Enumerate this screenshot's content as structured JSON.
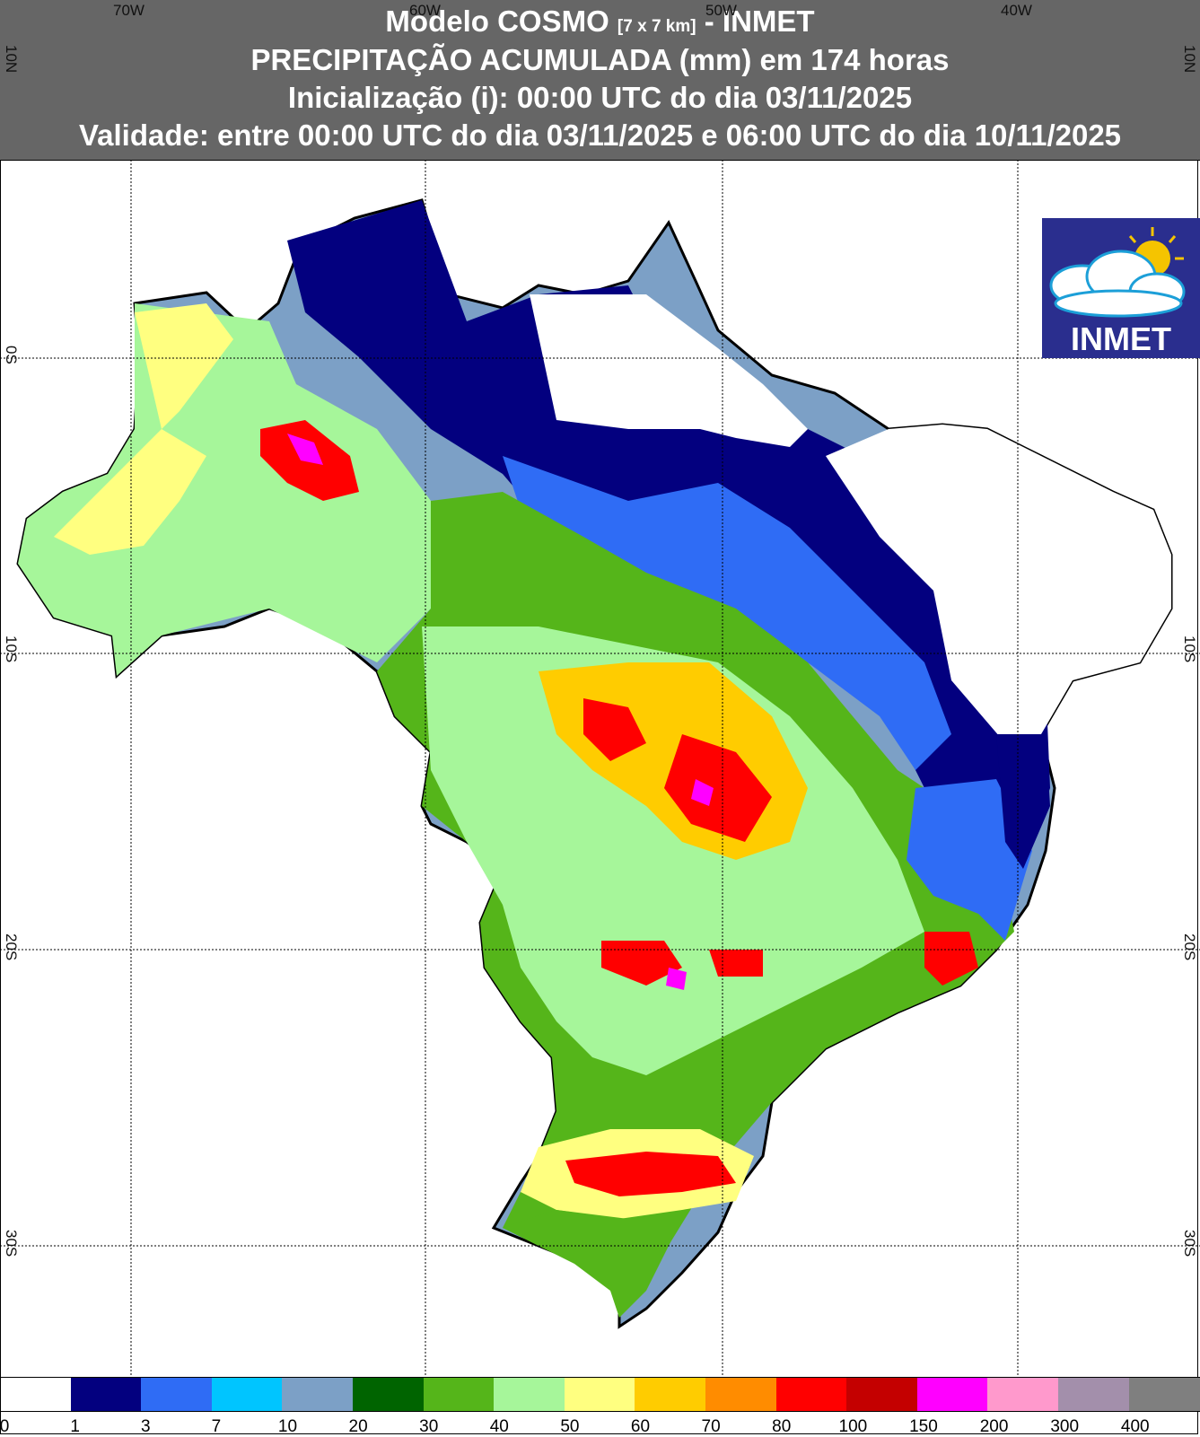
{
  "header": {
    "title_main": "Modelo COSMO ",
    "title_resolution": "[7 x 7 km]",
    "title_suffix": " - INMET",
    "subtitle": "PRECIPITAÇÃO ACUMULADA (mm) em 174 horas",
    "initialization": "Inicialização (i): 00:00 UTC do dia 03/11/2025",
    "validity": "Validade: entre 00:00 UTC do dia 03/11/2025 e 06:00 UTC do dia 10/11/2025"
  },
  "axes": {
    "lon_ticks": [
      "70W",
      "60W",
      "50W",
      "40W"
    ],
    "lat_ticks": [
      "10N",
      "0S",
      "10S",
      "20S",
      "30S"
    ]
  },
  "logo": {
    "text": "INMET",
    "colors": {
      "bg": "#2a2e8e",
      "sun": "#f5c400"
    }
  },
  "legend": {
    "colors": [
      "#ffffff",
      "#03007f",
      "#2f6cf5",
      "#00c5ff",
      "#7ca0c6",
      "#006400",
      "#55b51a",
      "#a6f69a",
      "#ffff80",
      "#ffcc00",
      "#ff8c00",
      "#ff0000",
      "#c40000",
      "#ff00ff",
      "#ff99cc",
      "#a38fab",
      "#7f7f7f"
    ],
    "labels": [
      "0",
      "1",
      "3",
      "7",
      "10",
      "20",
      "30",
      "40",
      "50",
      "60",
      "70",
      "80",
      "100",
      "150",
      "200",
      "300",
      "400"
    ]
  }
}
